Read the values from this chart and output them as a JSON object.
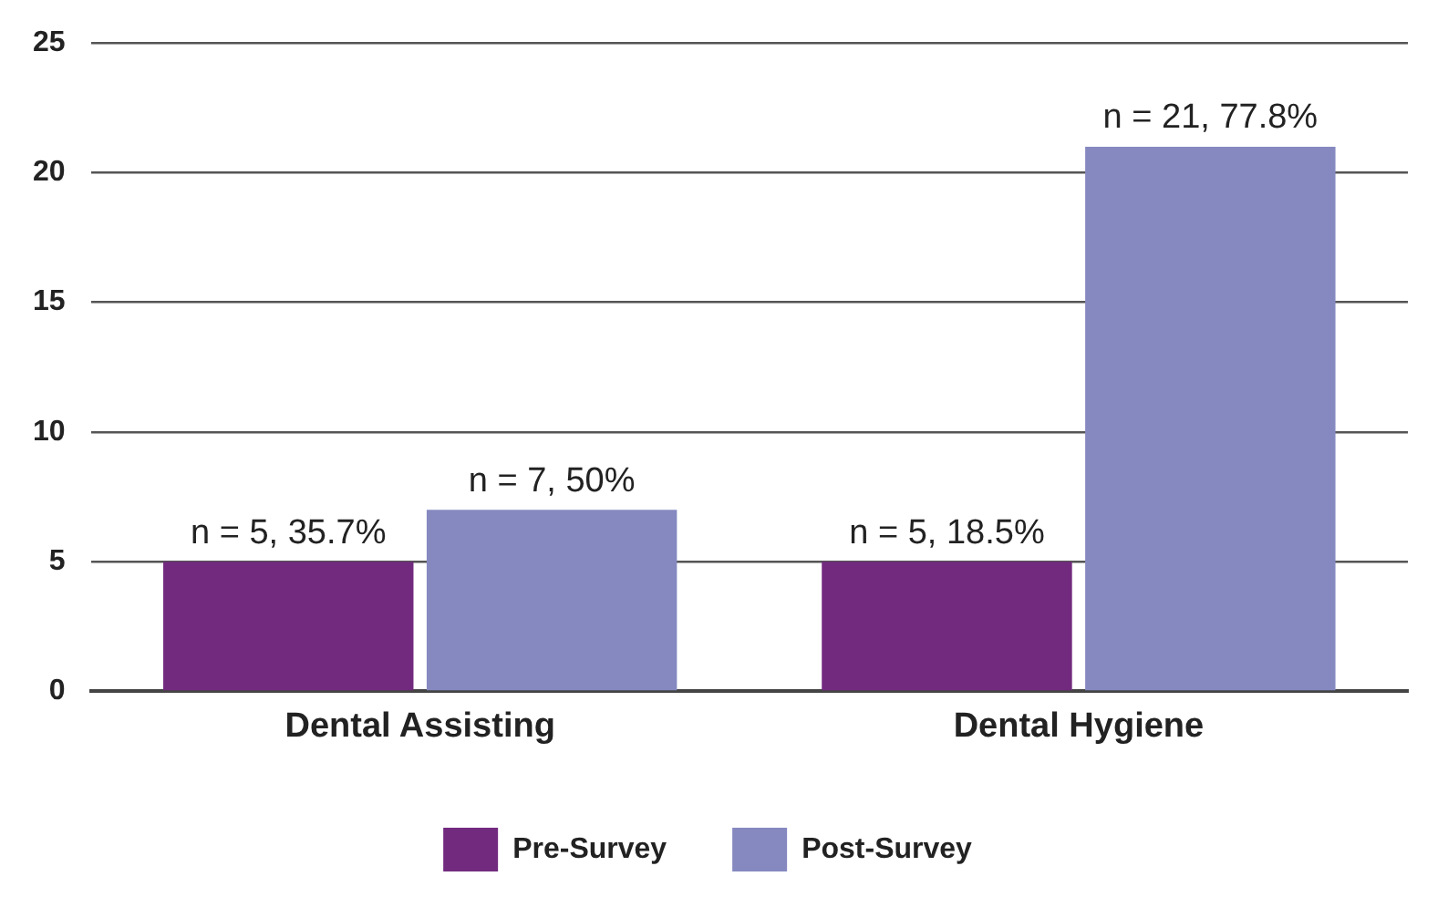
{
  "chart_data": {
    "type": "bar",
    "categories": [
      "Dental Assisting",
      "Dental Hygiene"
    ],
    "series": [
      {
        "name": "Pre-Survey",
        "color": "#722a7f",
        "values": [
          5,
          5
        ],
        "value_labels": [
          "n = 5, 35.7%",
          "n = 5, 18.5%"
        ]
      },
      {
        "name": "Post-Survey",
        "color": "#8589c0",
        "values": [
          7,
          21
        ],
        "value_labels": [
          "n = 7, 50%",
          "n = 21, 77.8%"
        ]
      }
    ],
    "ylim": [
      0,
      25
    ],
    "yticks": [
      0,
      5,
      10,
      15,
      20,
      25
    ],
    "grid": "y",
    "legend": "bottom"
  }
}
